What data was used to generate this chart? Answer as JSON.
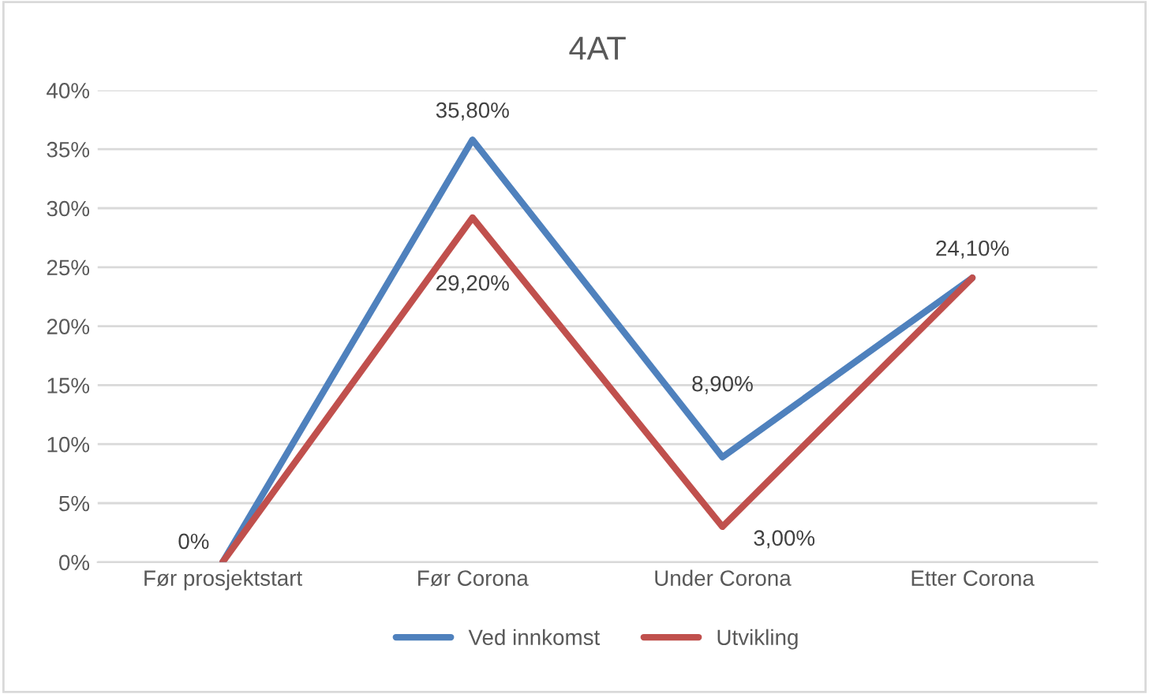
{
  "chart_data": {
    "type": "line",
    "title": "4AT",
    "categories": [
      "Før prosjektstart",
      "Før Corona",
      "Under Corona",
      "Etter Corona"
    ],
    "series": [
      {
        "name": "Ved innkomst",
        "color": "#4f81bd",
        "values": [
          0,
          35.8,
          8.9,
          24.1
        ],
        "value_labels": [
          "0%",
          "35,80%",
          "8,90%",
          "24,10%"
        ]
      },
      {
        "name": "Utvikling",
        "color": "#c0504d",
        "values": [
          0,
          29.2,
          3.0,
          24.1
        ],
        "value_labels": [
          null,
          "29,20%",
          "3,00%",
          null
        ]
      }
    ],
    "ylim": [
      0,
      40
    ],
    "yticks": [
      {
        "value": 0,
        "label": "0%"
      },
      {
        "value": 5,
        "label": "5%"
      },
      {
        "value": 10,
        "label": "10%"
      },
      {
        "value": 15,
        "label": "15%"
      },
      {
        "value": 20,
        "label": "20%"
      },
      {
        "value": 25,
        "label": "25%"
      },
      {
        "value": 30,
        "label": "30%"
      },
      {
        "value": 35,
        "label": "35%"
      },
      {
        "value": 40,
        "label": "40%"
      }
    ],
    "grid": "y",
    "legend": "bottom",
    "marker": "none",
    "line_style": "solid"
  }
}
